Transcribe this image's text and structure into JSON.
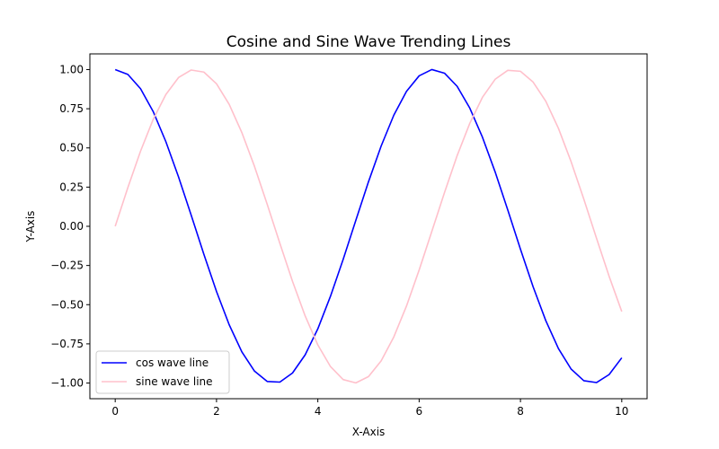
{
  "chart_data": {
    "type": "line",
    "title": "Cosine and Sine Wave Trending Lines",
    "xlabel": "X-Axis",
    "ylabel": "Y-Axis",
    "xlim": [
      -0.5,
      10.5
    ],
    "ylim": [
      -1.1,
      1.1
    ],
    "x_ticks": [
      0,
      2,
      4,
      6,
      8,
      10
    ],
    "x_tick_labels": [
      "0",
      "2",
      "4",
      "6",
      "8",
      "10"
    ],
    "y_ticks": [
      1.0,
      0.75,
      0.5,
      0.25,
      0.0,
      -0.25,
      -0.5,
      -0.75,
      -1.0
    ],
    "y_tick_labels": [
      "1.00",
      "0.75",
      "0.50",
      "0.25",
      "0.00",
      "−0.25",
      "−0.50",
      "−0.75",
      "−1.00"
    ],
    "grid": false,
    "legend_position": "lower-left",
    "x": [
      0,
      0.25,
      0.5,
      0.75,
      1.0,
      1.25,
      1.5,
      1.75,
      2.0,
      2.25,
      2.5,
      2.75,
      3.0,
      3.25,
      3.5,
      3.75,
      4.0,
      4.25,
      4.5,
      4.75,
      5.0,
      5.25,
      5.5,
      5.75,
      6.0,
      6.25,
      6.5,
      6.75,
      7.0,
      7.25,
      7.5,
      7.75,
      8.0,
      8.25,
      8.5,
      8.75,
      9.0,
      9.25,
      9.5,
      9.75,
      10.0
    ],
    "series": [
      {
        "name": "cos wave line",
        "color": "#0000ff",
        "values": [
          1.0,
          0.969,
          0.878,
          0.732,
          0.54,
          0.315,
          0.071,
          -0.178,
          -0.416,
          -0.628,
          -0.801,
          -0.924,
          -0.99,
          -0.994,
          -0.936,
          -0.82,
          -0.654,
          -0.446,
          -0.211,
          0.038,
          0.284,
          0.512,
          0.709,
          0.861,
          0.96,
          1.0,
          0.977,
          0.893,
          0.754,
          0.568,
          0.347,
          0.104,
          -0.146,
          -0.386,
          -0.602,
          -0.78,
          -0.911,
          -0.985,
          -0.997,
          -0.946,
          -0.839
        ]
      },
      {
        "name": "sine wave line",
        "color": "#ffc0cb",
        "values": [
          0.0,
          0.247,
          0.479,
          0.682,
          0.841,
          0.949,
          0.997,
          0.984,
          0.909,
          0.778,
          0.598,
          0.382,
          0.141,
          -0.108,
          -0.351,
          -0.572,
          -0.757,
          -0.895,
          -0.978,
          -0.999,
          -0.959,
          -0.859,
          -0.706,
          -0.509,
          -0.279,
          -0.033,
          0.215,
          0.451,
          0.657,
          0.823,
          0.938,
          0.995,
          0.989,
          0.92,
          0.798,
          0.625,
          0.412,
          0.174,
          -0.075,
          -0.319,
          -0.544
        ]
      }
    ]
  }
}
